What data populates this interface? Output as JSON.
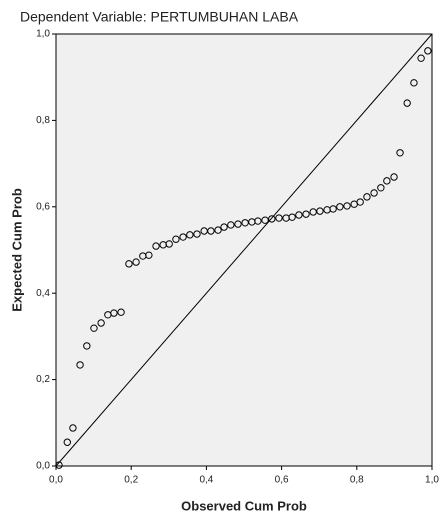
{
  "chart_data": {
    "type": "scatter",
    "title": "Dependent Variable: PERTUMBUHAN LABA",
    "x_label": "Observed Cum Prob",
    "y_label": "Expected Cum Prob",
    "x": [
      0.008,
      0.03,
      0.045,
      0.064,
      0.082,
      0.101,
      0.12,
      0.138,
      0.154,
      0.173,
      0.194,
      0.213,
      0.231,
      0.247,
      0.266,
      0.285,
      0.301,
      0.319,
      0.338,
      0.356,
      0.375,
      0.394,
      0.412,
      0.431,
      0.447,
      0.465,
      0.484,
      0.503,
      0.521,
      0.537,
      0.556,
      0.574,
      0.593,
      0.612,
      0.628,
      0.646,
      0.665,
      0.684,
      0.702,
      0.721,
      0.737,
      0.755,
      0.774,
      0.793,
      0.809,
      0.827,
      0.846,
      0.864,
      0.88,
      0.899,
      0.915,
      0.934,
      0.952,
      0.971,
      0.989
    ],
    "values": [
      0.002,
      0.055,
      0.088,
      0.234,
      0.278,
      0.319,
      0.331,
      0.35,
      0.354,
      0.356,
      0.468,
      0.472,
      0.486,
      0.488,
      0.509,
      0.512,
      0.514,
      0.525,
      0.53,
      0.535,
      0.537,
      0.544,
      0.544,
      0.546,
      0.553,
      0.558,
      0.56,
      0.563,
      0.565,
      0.567,
      0.569,
      0.572,
      0.574,
      0.574,
      0.576,
      0.581,
      0.583,
      0.588,
      0.59,
      0.593,
      0.595,
      0.6,
      0.602,
      0.606,
      0.611,
      0.623,
      0.632,
      0.644,
      0.66,
      0.669,
      0.725,
      0.84,
      0.887,
      0.944,
      0.961
    ],
    "color": "#000000",
    "xlim": [
      0,
      1
    ],
    "ylim": [
      0,
      1
    ],
    "xticks": [
      {
        "value": 0,
        "label": "0,0"
      },
      {
        "value": 0.2,
        "label": "0,2"
      },
      {
        "value": 0.4,
        "label": "0,4"
      },
      {
        "value": 0.6,
        "label": "0,6"
      },
      {
        "value": 0.8,
        "label": "0,8"
      },
      {
        "value": 1,
        "label": "1,0"
      }
    ],
    "yticks": [
      {
        "value": 0,
        "label": "0,0"
      },
      {
        "value": 0.2,
        "label": "0,2"
      },
      {
        "value": 0.4,
        "label": "0,4"
      },
      {
        "value": 0.6,
        "label": "0,6"
      },
      {
        "value": 0.8,
        "label": "0,8"
      },
      {
        "value": 1,
        "label": "1,0"
      }
    ],
    "grid": false
  }
}
